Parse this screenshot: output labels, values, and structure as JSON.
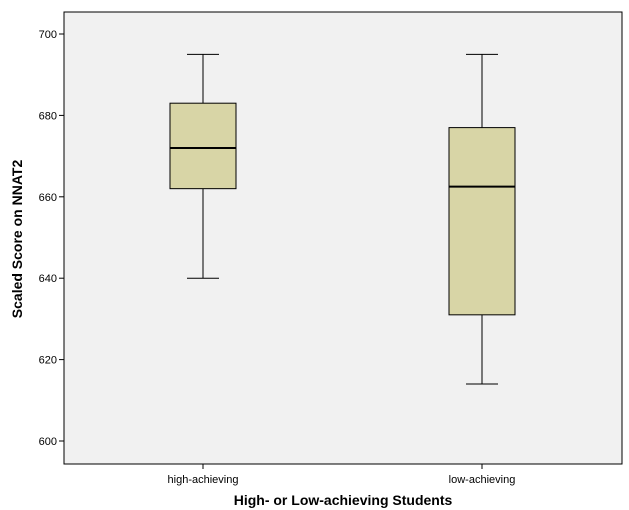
{
  "chart_data": {
    "type": "boxplot",
    "title": "",
    "xlabel": "High- or Low-achieving Students",
    "ylabel": "Scaled Score on NNAT2",
    "ylim": [
      595,
      705
    ],
    "yticks": [
      600,
      620,
      640,
      660,
      680,
      700
    ],
    "categories": [
      "high-achieving",
      "low-achieving"
    ],
    "boxes": [
      {
        "category": "high-achieving",
        "min": 640,
        "q1": 662,
        "median": 672,
        "q3": 683,
        "max": 695
      },
      {
        "category": "low-achieving",
        "min": 614,
        "q1": 631,
        "median": 662.5,
        "q3": 677,
        "max": 695
      }
    ],
    "grid": false,
    "colors": {
      "plot_background": "#f1f1f1",
      "box_fill": "#d8d5a6",
      "stroke": "#000000"
    }
  }
}
